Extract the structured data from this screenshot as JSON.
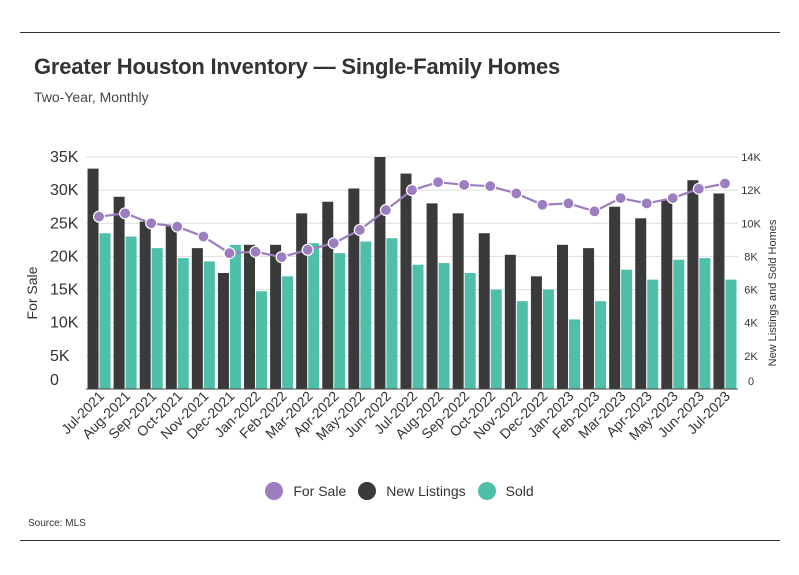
{
  "title": "Greater Houston Inventory — Single-Family Homes",
  "subtitle": "Two-Year, Monthly",
  "source": "Source: MLS",
  "colors": {
    "for_sale": "#9b7dc0",
    "new_listings": "#3a3a3a",
    "sold": "#4fbfaa",
    "grid": "#dddddd"
  },
  "chart_data": {
    "type": "bar",
    "categories": [
      "Jul-2021",
      "Aug-2021",
      "Sep-2021",
      "Oct-2021",
      "Nov-2021",
      "Dec-2021",
      "Jan-2022",
      "Feb-2022",
      "Mar-2022",
      "Apr-2022",
      "May-2022",
      "Jun-2022",
      "Jul-2022",
      "Aug-2022",
      "Sep-2022",
      "Oct-2022",
      "Nov-2022",
      "Dec-2022",
      "Jan-2023",
      "Feb-2023",
      "Mar-2023",
      "Apr-2023",
      "May-2023",
      "Jun-2023",
      "Jul-2023"
    ],
    "ylabel": "For Sale",
    "y2label": "New Listings and Sold Homes",
    "ylim": [
      0,
      35000
    ],
    "y2lim": [
      0,
      14000
    ],
    "yticks": [
      "0",
      "5K",
      "10K",
      "15K",
      "20K",
      "25K",
      "30K",
      "35K"
    ],
    "y2ticks": [
      "0",
      "2K",
      "4K",
      "6K",
      "8K",
      "10K",
      "12K",
      "14K"
    ],
    "legend": "bottom-center",
    "grid": true,
    "series": [
      {
        "name": "For Sale",
        "type": "line",
        "axis": "left",
        "values": [
          26000,
          26500,
          25000,
          24500,
          23000,
          20500,
          20700,
          19900,
          21000,
          22000,
          24000,
          27000,
          30000,
          31200,
          30800,
          30600,
          29500,
          27800,
          28000,
          26800,
          28800,
          28000,
          28800,
          30200,
          31000
        ]
      },
      {
        "name": "New Listings",
        "type": "bar",
        "axis": "right",
        "values": [
          13300,
          11600,
          10100,
          9900,
          8500,
          7000,
          8700,
          8700,
          10600,
          11300,
          12100,
          14000,
          13000,
          11200,
          10600,
          9400,
          8100,
          6800,
          8700,
          8500,
          11000,
          10300,
          11400,
          12600,
          11800
        ]
      },
      {
        "name": "Sold",
        "type": "bar",
        "axis": "right",
        "values": [
          9400,
          9200,
          8500,
          7900,
          7700,
          8700,
          5900,
          6800,
          8800,
          8200,
          8900,
          9100,
          7500,
          7600,
          7000,
          6000,
          5300,
          6000,
          4200,
          5300,
          7200,
          6600,
          7800,
          7900,
          6600
        ]
      }
    ]
  }
}
